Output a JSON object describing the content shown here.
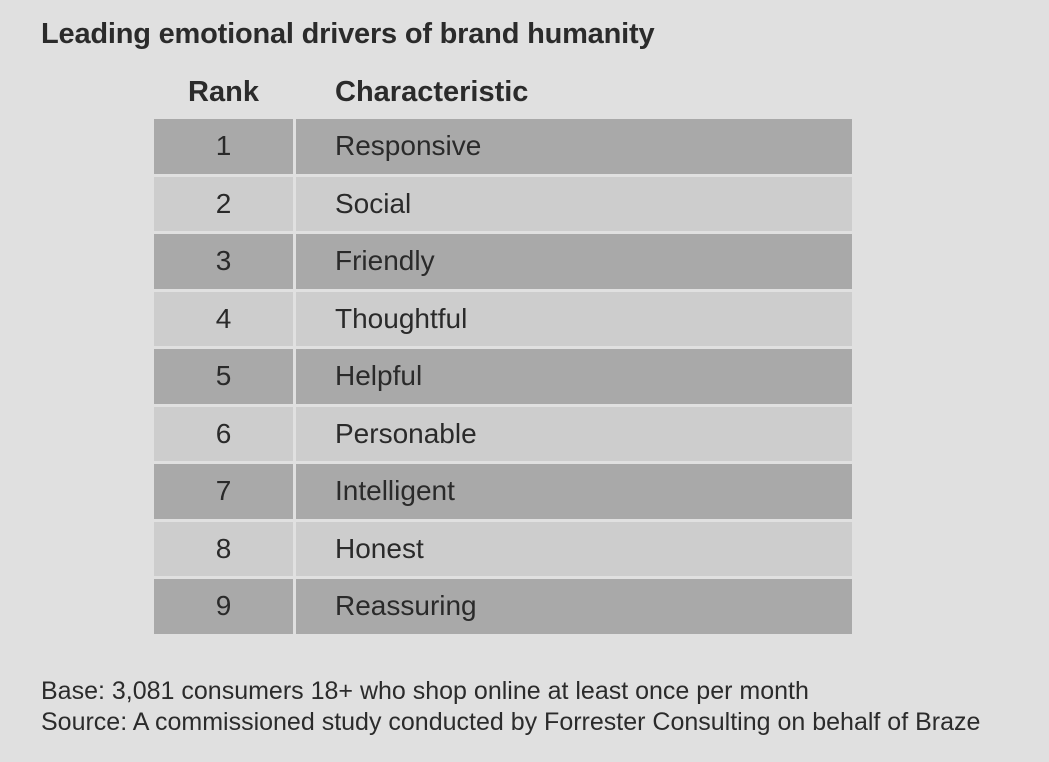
{
  "chart_data": {
    "type": "table",
    "title": "Leading emotional drivers of brand humanity",
    "columns": [
      "Rank",
      "Characteristic"
    ],
    "rows": [
      {
        "rank": "1",
        "characteristic": "Responsive"
      },
      {
        "rank": "2",
        "characteristic": "Social"
      },
      {
        "rank": "3",
        "characteristic": "Friendly"
      },
      {
        "rank": "4",
        "characteristic": "Thoughtful"
      },
      {
        "rank": "5",
        "characteristic": "Helpful"
      },
      {
        "rank": "6",
        "characteristic": "Personable"
      },
      {
        "rank": "7",
        "characteristic": "Intelligent"
      },
      {
        "rank": "8",
        "characteristic": "Honest"
      },
      {
        "rank": "9",
        "characteristic": "Reassuring"
      }
    ],
    "row_colors": [
      "#a9a9a9",
      "#cdcdcd"
    ]
  },
  "notes": {
    "base": "Base: 3,081 consumers 18+ who shop online at least once per month",
    "source": "Source: A commissioned study conducted by Forrester Consulting on behalf of Braze"
  }
}
